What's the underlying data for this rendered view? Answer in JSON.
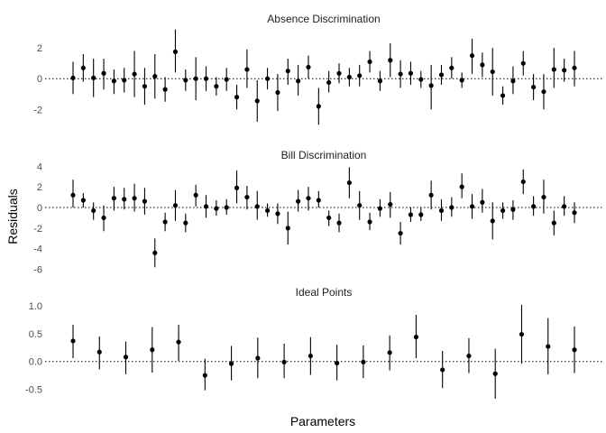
{
  "ylabel": "Residuals",
  "xlabel": "Parameters",
  "chart_data": [
    {
      "type": "scatter",
      "title": "Absence Discrimination",
      "ylim": [
        -3.1,
        3.3
      ],
      "yticks": [
        -2,
        0,
        2
      ],
      "ytick_labels": [
        "-2",
        "0",
        "2"
      ],
      "points": [
        {
          "y": 0.05,
          "lo": -1.0,
          "hi": 1.1
        },
        {
          "y": 0.7,
          "lo": -0.2,
          "hi": 1.6
        },
        {
          "y": 0.05,
          "lo": -1.2,
          "hi": 1.3
        },
        {
          "y": 0.35,
          "lo": -0.7,
          "hi": 1.3
        },
        {
          "y": -0.15,
          "lo": -1.0,
          "hi": 0.6
        },
        {
          "y": -0.1,
          "lo": -0.9,
          "hi": 0.7
        },
        {
          "y": 0.3,
          "lo": -1.2,
          "hi": 1.8
        },
        {
          "y": -0.5,
          "lo": -1.7,
          "hi": 0.7
        },
        {
          "y": 0.15,
          "lo": -1.3,
          "hi": 1.6
        },
        {
          "y": -0.7,
          "lo": -1.5,
          "hi": 0.1
        },
        {
          "y": 1.75,
          "lo": 0.4,
          "hi": 3.2
        },
        {
          "y": -0.1,
          "lo": -0.8,
          "hi": 0.6
        },
        {
          "y": 0.0,
          "lo": -1.4,
          "hi": 1.4
        },
        {
          "y": 0.0,
          "lo": -0.8,
          "hi": 0.8
        },
        {
          "y": -0.5,
          "lo": -1.1,
          "hi": 0.1
        },
        {
          "y": -0.05,
          "lo": -0.8,
          "hi": 0.7
        },
        {
          "y": -1.2,
          "lo": -2.0,
          "hi": -0.4
        },
        {
          "y": 0.6,
          "lo": -0.6,
          "hi": 1.9
        },
        {
          "y": -1.45,
          "lo": -2.8,
          "hi": -0.1
        },
        {
          "y": 0.0,
          "lo": -0.7,
          "hi": 0.7
        },
        {
          "y": -0.9,
          "lo": -2.1,
          "hi": 0.3
        },
        {
          "y": 0.5,
          "lo": -0.4,
          "hi": 1.3
        },
        {
          "y": -0.15,
          "lo": -1.1,
          "hi": 0.9
        },
        {
          "y": 0.75,
          "lo": 0.0,
          "hi": 1.5
        },
        {
          "y": -1.8,
          "lo": -3.0,
          "hi": -0.6
        },
        {
          "y": -0.25,
          "lo": -0.9,
          "hi": 0.5
        },
        {
          "y": 0.35,
          "lo": -0.3,
          "hi": 1.0
        },
        {
          "y": 0.1,
          "lo": -0.5,
          "hi": 0.7
        },
        {
          "y": 0.2,
          "lo": -0.5,
          "hi": 0.9
        },
        {
          "y": 1.1,
          "lo": 0.4,
          "hi": 1.8
        },
        {
          "y": -0.15,
          "lo": -0.8,
          "hi": 0.5
        },
        {
          "y": 1.2,
          "lo": 0.1,
          "hi": 2.3
        },
        {
          "y": 0.3,
          "lo": -0.6,
          "hi": 1.2
        },
        {
          "y": 0.35,
          "lo": -0.4,
          "hi": 1.1
        },
        {
          "y": -0.05,
          "lo": -0.6,
          "hi": 0.5
        },
        {
          "y": -0.45,
          "lo": -2.0,
          "hi": 0.9
        },
        {
          "y": 0.25,
          "lo": -0.4,
          "hi": 0.9
        },
        {
          "y": 0.7,
          "lo": 0.0,
          "hi": 1.4
        },
        {
          "y": -0.1,
          "lo": -0.6,
          "hi": 0.4
        },
        {
          "y": 1.5,
          "lo": 0.3,
          "hi": 2.6
        },
        {
          "y": 0.9,
          "lo": 0.1,
          "hi": 1.7
        },
        {
          "y": 0.45,
          "lo": -1.1,
          "hi": 2.0
        },
        {
          "y": -1.1,
          "lo": -1.7,
          "hi": -0.5
        },
        {
          "y": -0.15,
          "lo": -1.0,
          "hi": 0.8
        },
        {
          "y": 1.0,
          "lo": 0.2,
          "hi": 1.8
        },
        {
          "y": -0.55,
          "lo": -1.4,
          "hi": 0.3
        },
        {
          "y": -0.85,
          "lo": -2.0,
          "hi": 0.3
        },
        {
          "y": 0.6,
          "lo": -0.6,
          "hi": 2.0
        },
        {
          "y": 0.55,
          "lo": -0.2,
          "hi": 1.3
        },
        {
          "y": 0.7,
          "lo": -0.5,
          "hi": 1.8
        }
      ]
    },
    {
      "type": "scatter",
      "title": "Bill Discrimination",
      "ylim": [
        -6.3,
        4.2
      ],
      "yticks": [
        4,
        2,
        0,
        -2,
        -4,
        -6
      ],
      "ytick_labels": [
        "4",
        "2",
        "0",
        "-2",
        "-4",
        "-6"
      ],
      "points": [
        {
          "y": 1.2,
          "lo": 0.0,
          "hi": 2.7
        },
        {
          "y": 0.7,
          "lo": 0.0,
          "hi": 1.4
        },
        {
          "y": -0.3,
          "lo": -1.2,
          "hi": 0.5
        },
        {
          "y": -1.0,
          "lo": -2.3,
          "hi": 0.2
        },
        {
          "y": 0.9,
          "lo": -0.3,
          "hi": 2.0
        },
        {
          "y": 0.8,
          "lo": -0.2,
          "hi": 1.9
        },
        {
          "y": 0.9,
          "lo": -0.4,
          "hi": 2.3
        },
        {
          "y": 0.6,
          "lo": -0.7,
          "hi": 1.9
        },
        {
          "y": -4.4,
          "lo": -5.8,
          "hi": -3.0
        },
        {
          "y": -1.4,
          "lo": -2.3,
          "hi": -0.5
        },
        {
          "y": 0.2,
          "lo": -1.3,
          "hi": 1.7
        },
        {
          "y": -1.5,
          "lo": -2.4,
          "hi": -0.6
        },
        {
          "y": 1.2,
          "lo": 0.1,
          "hi": 2.2
        },
        {
          "y": 0.1,
          "lo": -1.0,
          "hi": 1.2
        },
        {
          "y": -0.1,
          "lo": -0.8,
          "hi": 0.7
        },
        {
          "y": 0.0,
          "lo": -0.7,
          "hi": 0.8
        },
        {
          "y": 1.9,
          "lo": 0.4,
          "hi": 3.6
        },
        {
          "y": 1.0,
          "lo": -0.2,
          "hi": 2.1
        },
        {
          "y": 0.1,
          "lo": -1.2,
          "hi": 1.6
        },
        {
          "y": -0.3,
          "lo": -0.9,
          "hi": 0.4
        },
        {
          "y": -0.6,
          "lo": -1.6,
          "hi": 0.4
        },
        {
          "y": -2.0,
          "lo": -3.6,
          "hi": -0.4
        },
        {
          "y": 0.6,
          "lo": -0.4,
          "hi": 1.7
        },
        {
          "y": 0.9,
          "lo": -0.3,
          "hi": 2.0
        },
        {
          "y": 0.7,
          "lo": 0.0,
          "hi": 1.6
        },
        {
          "y": -1.0,
          "lo": -1.8,
          "hi": -0.3
        },
        {
          "y": -1.5,
          "lo": -2.4,
          "hi": -0.6
        },
        {
          "y": 2.4,
          "lo": 0.9,
          "hi": 3.9
        },
        {
          "y": 0.2,
          "lo": -1.2,
          "hi": 1.6
        },
        {
          "y": -1.4,
          "lo": -2.2,
          "hi": -0.5
        },
        {
          "y": -0.1,
          "lo": -0.9,
          "hi": 0.8
        },
        {
          "y": 0.3,
          "lo": -1.0,
          "hi": 1.5
        },
        {
          "y": -2.5,
          "lo": -3.6,
          "hi": -1.4
        },
        {
          "y": -0.7,
          "lo": -1.4,
          "hi": 0.0
        },
        {
          "y": -0.7,
          "lo": -1.3,
          "hi": 0.0
        },
        {
          "y": 1.2,
          "lo": -0.2,
          "hi": 2.6
        },
        {
          "y": -0.3,
          "lo": -1.3,
          "hi": 0.8
        },
        {
          "y": 0.0,
          "lo": -0.9,
          "hi": 1.0
        },
        {
          "y": 2.0,
          "lo": 0.9,
          "hi": 3.3
        },
        {
          "y": 0.1,
          "lo": -1.1,
          "hi": 1.3
        },
        {
          "y": 0.5,
          "lo": -0.5,
          "hi": 1.8
        },
        {
          "y": -1.3,
          "lo": -3.1,
          "hi": 0.5
        },
        {
          "y": -0.3,
          "lo": -1.1,
          "hi": 0.5
        },
        {
          "y": -0.2,
          "lo": -1.2,
          "hi": 0.7
        },
        {
          "y": 2.5,
          "lo": 1.3,
          "hi": 3.7
        },
        {
          "y": 0.1,
          "lo": -0.8,
          "hi": 1.1
        },
        {
          "y": 1.0,
          "lo": -0.6,
          "hi": 2.7
        },
        {
          "y": -1.5,
          "lo": -2.7,
          "hi": -0.3
        },
        {
          "y": 0.1,
          "lo": -0.8,
          "hi": 1.1
        },
        {
          "y": -0.5,
          "lo": -1.5,
          "hi": 0.5
        }
      ]
    },
    {
      "type": "scatter",
      "title": "Ideal Points",
      "ylim": [
        -0.72,
        1.1
      ],
      "yticks": [
        1.0,
        0.5,
        0.0,
        -0.5
      ],
      "ytick_labels": [
        "1.0",
        "0.5",
        "0.0",
        "-0.5"
      ],
      "points": [
        {
          "y": 0.37,
          "lo": 0.06,
          "hi": 0.66
        },
        {
          "y": 0.17,
          "lo": -0.14,
          "hi": 0.45
        },
        {
          "y": 0.08,
          "lo": -0.23,
          "hi": 0.36
        },
        {
          "y": 0.21,
          "lo": -0.2,
          "hi": 0.62
        },
        {
          "y": 0.35,
          "lo": 0.01,
          "hi": 0.66
        },
        {
          "y": -0.25,
          "lo": -0.52,
          "hi": 0.05
        },
        {
          "y": -0.04,
          "lo": -0.34,
          "hi": 0.28
        },
        {
          "y": 0.06,
          "lo": -0.3,
          "hi": 0.43
        },
        {
          "y": -0.01,
          "lo": -0.3,
          "hi": 0.32
        },
        {
          "y": 0.1,
          "lo": -0.24,
          "hi": 0.44
        },
        {
          "y": -0.03,
          "lo": -0.34,
          "hi": 0.3
        },
        {
          "y": -0.01,
          "lo": -0.3,
          "hi": 0.29
        },
        {
          "y": 0.16,
          "lo": -0.16,
          "hi": 0.47
        },
        {
          "y": 0.44,
          "lo": 0.06,
          "hi": 0.84
        },
        {
          "y": -0.15,
          "lo": -0.48,
          "hi": 0.19
        },
        {
          "y": 0.1,
          "lo": -0.21,
          "hi": 0.42
        },
        {
          "y": -0.22,
          "lo": -0.67,
          "hi": 0.23
        },
        {
          "y": 0.49,
          "lo": -0.04,
          "hi": 1.02
        },
        {
          "y": 0.27,
          "lo": -0.23,
          "hi": 0.78
        },
        {
          "y": 0.21,
          "lo": -0.21,
          "hi": 0.63
        }
      ]
    }
  ]
}
